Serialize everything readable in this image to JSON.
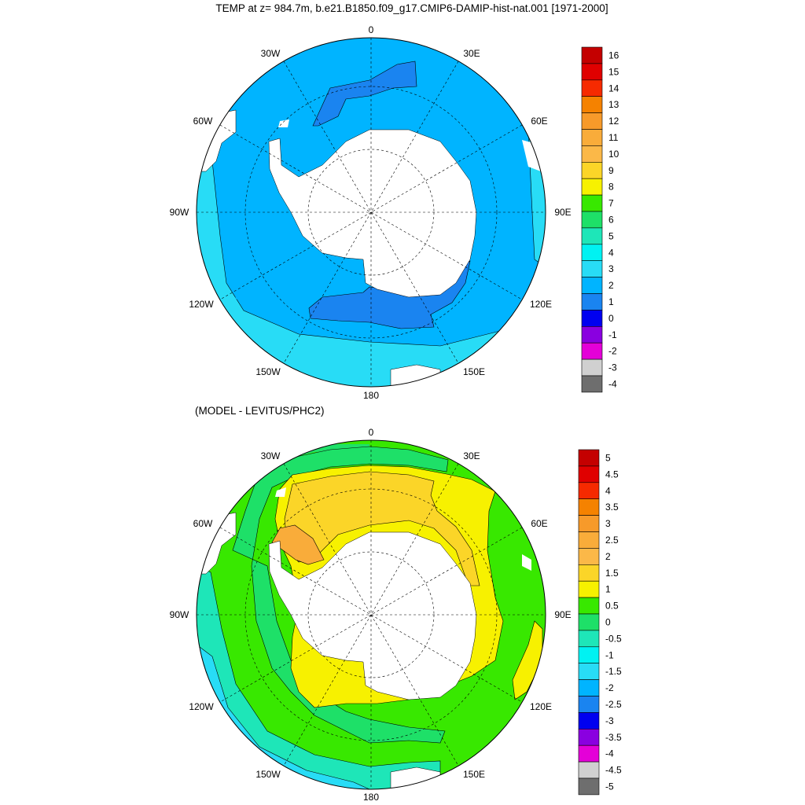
{
  "title_top": "TEMP at z= 984.7m, b.e21.B1850.f09_g17.CMIP6-DAMIP-hist-nat.001 [1971-2000]",
  "title_bottom": "(MODEL - LEVITUS/PHC2)",
  "longitude_labels": {
    "lon_0": "0",
    "lon_30e": "30E",
    "lon_60e": "60E",
    "lon_90e": "90E",
    "lon_120e": "120E",
    "lon_150e": "150E",
    "lon_180": "180",
    "lon_150w": "150W",
    "lon_120w": "120W",
    "lon_90w": "90W",
    "lon_60w": "60W",
    "lon_30w": "30W"
  },
  "colorbar_top": {
    "labels": [
      "16",
      "15",
      "14",
      "13",
      "12",
      "11",
      "10",
      "9",
      "8",
      "7",
      "6",
      "5",
      "4",
      "3",
      "2",
      "1",
      "0",
      "-1",
      "-2",
      "-3",
      "-4"
    ],
    "colors": [
      "#c40000",
      "#e00000",
      "#f62a00",
      "#f58200",
      "#f79a2a",
      "#f9ac3a",
      "#fbb848",
      "#fbd528",
      "#f7f100",
      "#38e800",
      "#1ee068",
      "#1ee6b8",
      "#00f2f2",
      "#28dcf6",
      "#00b4ff",
      "#1a84f0",
      "#0000f0",
      "#8a00e0",
      "#e400d8",
      "#d0d0d0",
      "#6e6e6e"
    ]
  },
  "colorbar_bottom": {
    "labels": [
      "5",
      "4.5",
      "4",
      "3.5",
      "3",
      "2.5",
      "2",
      "1.5",
      "1",
      "0.5",
      "0",
      "-0.5",
      "-1",
      "-1.5",
      "-2",
      "-2.5",
      "-3",
      "-3.5",
      "-4",
      "-4.5",
      "-5"
    ],
    "colors": [
      "#c40000",
      "#e00000",
      "#f62a00",
      "#f58200",
      "#f79a2a",
      "#f9ac3a",
      "#fbb848",
      "#fbd528",
      "#f7f100",
      "#38e800",
      "#1ee068",
      "#1ee6b8",
      "#00f2f2",
      "#28dcf6",
      "#00b4ff",
      "#1a84f0",
      "#0000f0",
      "#8a00e0",
      "#e400d8",
      "#d0d0d0",
      "#6e6e6e"
    ]
  }
}
